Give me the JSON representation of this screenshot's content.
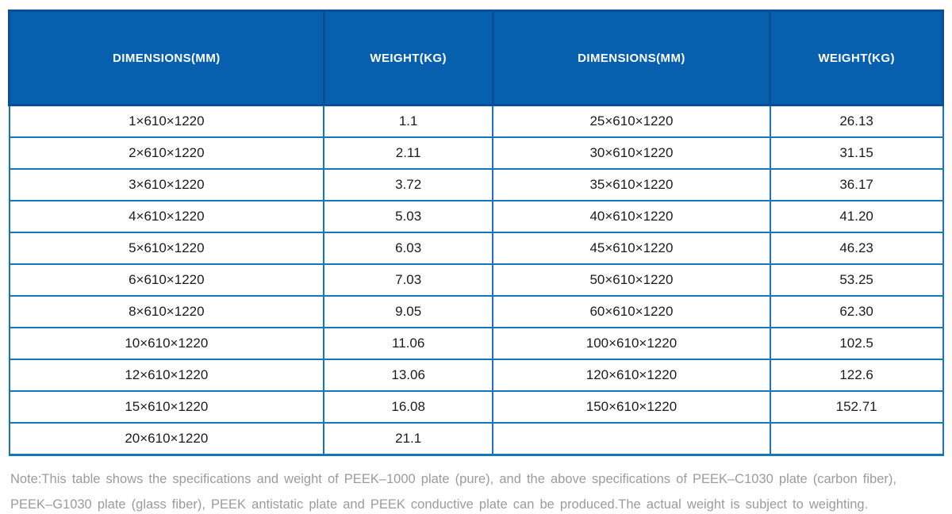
{
  "table": {
    "columns": [
      {
        "label": "DIMENSIONS(MM)"
      },
      {
        "label": "WEIGHT(KG)"
      },
      {
        "label": "DIMENSIONS(MM)"
      },
      {
        "label": "WEIGHT(KG)"
      }
    ],
    "rows": [
      [
        "1×610×1220",
        "1.1",
        "25×610×1220",
        "26.13"
      ],
      [
        "2×610×1220",
        "2.11",
        "30×610×1220",
        "31.15"
      ],
      [
        "3×610×1220",
        "3.72",
        "35×610×1220",
        "36.17"
      ],
      [
        "4×610×1220",
        "5.03",
        "40×610×1220",
        "41.20"
      ],
      [
        "5×610×1220",
        "6.03",
        "45×610×1220",
        "46.23"
      ],
      [
        "6×610×1220",
        "7.03",
        "50×610×1220",
        "53.25"
      ],
      [
        "8×610×1220",
        "9.05",
        "60×610×1220",
        "62.30"
      ],
      [
        "10×610×1220",
        "11.06",
        "100×610×1220",
        "102.5"
      ],
      [
        "12×610×1220",
        "13.06",
        "120×610×1220",
        "122.6"
      ],
      [
        "15×610×1220",
        "16.08",
        "150×610×1220",
        "152.71"
      ],
      [
        "20×610×1220",
        "21.1",
        "",
        ""
      ]
    ]
  },
  "note": {
    "line1": "Note:This table shows the specifications and weight of PEEK–1000 plate (pure), and the above specifications of PEEK–C1030 plate (carbon fiber),",
    "line2": "PEEK–G1030 plate (glass fiber), PEEK antistatic plate and PEEK conductive plate can be produced.The actual weight is subject to weighting."
  },
  "colors": {
    "header_fill": "#0660AD",
    "header_border": "#084F97",
    "row_border": "#1377BE",
    "cell_text": "#1b1b1b",
    "note_text": "#9b9b9b"
  }
}
